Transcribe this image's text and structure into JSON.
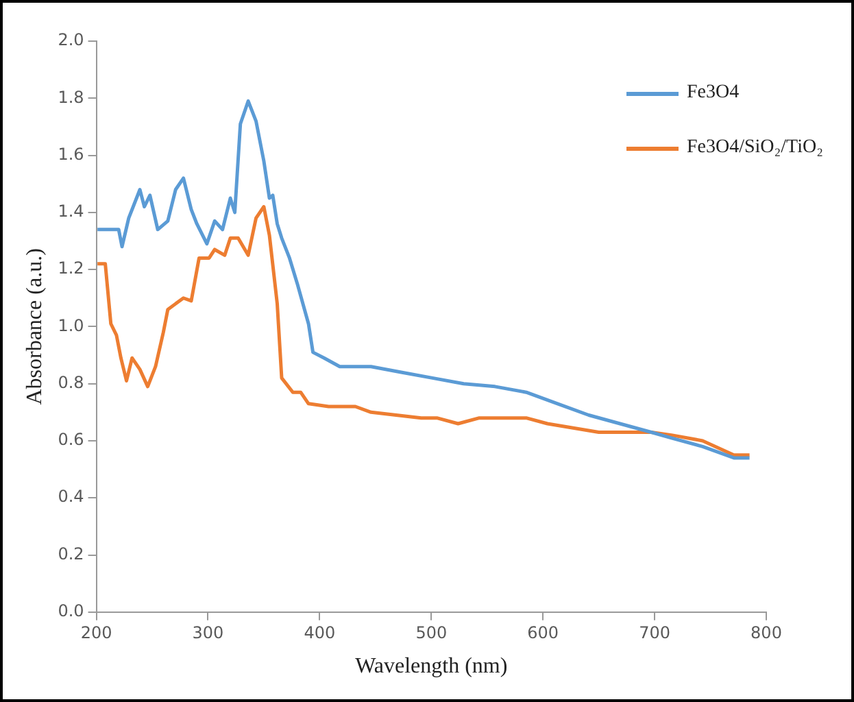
{
  "chart_data": {
    "type": "line",
    "xlabel": "Wavelength (nm)",
    "ylabel": "Absorbance (a.u.)",
    "xlim": [
      200,
      800
    ],
    "xticks": [
      200,
      300,
      400,
      500,
      600,
      700,
      800
    ],
    "ylim": [
      0,
      2
    ],
    "yticks": [
      {
        "value": 0,
        "label": "0.0"
      },
      {
        "value": 0.2,
        "label": "0.2"
      },
      {
        "value": 0.4,
        "label": "0.4"
      },
      {
        "value": 0.6,
        "label": "0.6"
      },
      {
        "value": 0.8,
        "label": "0.8"
      },
      {
        "value": 1,
        "label": "1.0"
      },
      {
        "value": 1.2,
        "label": "1.2"
      },
      {
        "value": 1.4,
        "label": "1.4"
      },
      {
        "value": 1.6,
        "label": "1.6"
      },
      {
        "value": 1.8,
        "label": "1.8"
      },
      {
        "value": 2,
        "label": "2.0"
      }
    ],
    "grid": false,
    "legend": "top right",
    "marker": "none",
    "line_style": "solid",
    "series": [
      {
        "name": "Fe3O4",
        "color": "#5b9bd5",
        "x": [
          201,
          220,
          223,
          229,
          239,
          243,
          248,
          255,
          264,
          271,
          278,
          285,
          290,
          299,
          306,
          313,
          320,
          324,
          329,
          336,
          343,
          350,
          355,
          358,
          362,
          366,
          373,
          380,
          390,
          394,
          404,
          418,
          446,
          473,
          501,
          529,
          557,
          585,
          613,
          641,
          669,
          697,
          715,
          743,
          771,
          785
        ],
        "values": [
          1.34,
          1.34,
          1.28,
          1.38,
          1.48,
          1.42,
          1.46,
          1.34,
          1.37,
          1.48,
          1.52,
          1.41,
          1.36,
          1.29,
          1.37,
          1.34,
          1.45,
          1.4,
          1.71,
          1.79,
          1.72,
          1.58,
          1.45,
          1.46,
          1.36,
          1.31,
          1.24,
          1.15,
          1.01,
          0.91,
          0.89,
          0.86,
          0.86,
          0.84,
          0.82,
          0.8,
          0.79,
          0.77,
          0.73,
          0.69,
          0.66,
          0.63,
          0.61,
          0.58,
          0.54,
          0.54
        ]
      },
      {
        "name": "Fe3O4/SiO₂/TiO₂",
        "color": "#ed7d31",
        "x": [
          201,
          208,
          213,
          218,
          222,
          227,
          232,
          239,
          246,
          253,
          260,
          264,
          278,
          285,
          292,
          301,
          306,
          315,
          320,
          327,
          336,
          343,
          350,
          355,
          362,
          366,
          376,
          383,
          390,
          408,
          432,
          446,
          491,
          505,
          524,
          543,
          557,
          585,
          604,
          650,
          697,
          715,
          743,
          771,
          785
        ],
        "values": [
          1.22,
          1.22,
          1.01,
          0.97,
          0.89,
          0.81,
          0.89,
          0.85,
          0.79,
          0.86,
          0.98,
          1.06,
          1.1,
          1.09,
          1.24,
          1.24,
          1.27,
          1.25,
          1.31,
          1.31,
          1.25,
          1.38,
          1.42,
          1.32,
          1.08,
          0.82,
          0.77,
          0.77,
          0.73,
          0.72,
          0.72,
          0.7,
          0.68,
          0.68,
          0.66,
          0.68,
          0.68,
          0.68,
          0.66,
          0.63,
          0.63,
          0.62,
          0.6,
          0.55,
          0.55
        ]
      }
    ]
  }
}
